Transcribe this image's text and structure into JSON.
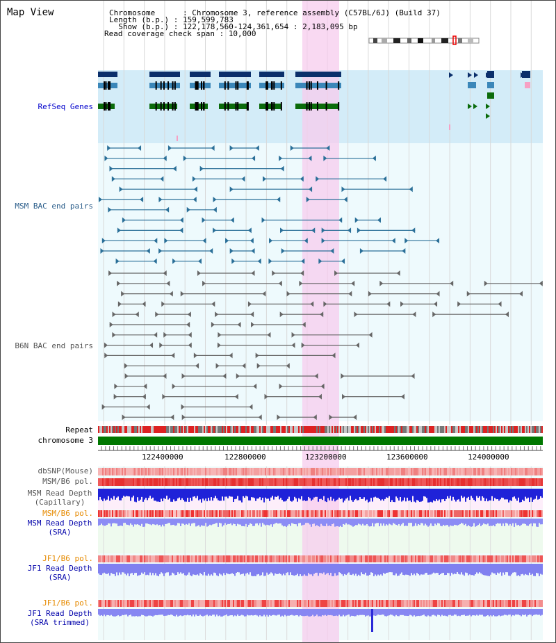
{
  "title": "Map View",
  "header": {
    "chromosome_label": "Chromosome      : ",
    "chromosome_value": "Chromosome 3, reference assembly (C57BL/6J) (Build 37)",
    "length_label": "Length (b.p.) : ",
    "length_value": "159,599,783",
    "show_label": "  Show (b.p.) : ",
    "show_value": "122,178,560-124,361,654 : 2,183,095 bp",
    "coverage_label": "Read coverage check span : ",
    "coverage_value": "10,000"
  },
  "tracks": {
    "refseq": "RefSeq Genes",
    "msm_bac": "MSM BAC end pairs",
    "b6n_bac": "B6N BAC end pairs",
    "repeat": "Repeat",
    "chromosome": "chromosome 3",
    "dbsnp": "dbSNP(Mouse)",
    "msm_pol_1": "MSM/B6 pol.",
    "msm_depth_cap_1": "MSM Read Depth",
    "msm_depth_cap_2": "(Capillary)",
    "msm_pol_2": "MSM/B6 pol.",
    "msm_depth_sra_1": "MSM Read Depth",
    "msm_depth_sra_2": "(SRA)",
    "jf1_pol_1": "JF1/B6 pol.",
    "jf1_depth_sra_1": "JF1 Read Depth",
    "jf1_depth_sra_2": "(SRA)",
    "jf1_pol_2": "JF1/B6 pol.",
    "jf1_depth_trim_1": "JF1 Read Depth",
    "jf1_depth_trim_2": "(SRA trimmed)"
  },
  "axis": {
    "ticks": [
      "122400000",
      "122800000",
      "123200000",
      "123600000",
      "124000000"
    ]
  },
  "colors": {
    "refseq_label": "#0000cc",
    "msm_label": "#2a5d8a",
    "b6n_label": "#555555",
    "pol_orange": "#e68a00",
    "depth_blue": "#0000aa",
    "highlight": "#f7ccee",
    "chromosome_bar": "#007700"
  }
}
